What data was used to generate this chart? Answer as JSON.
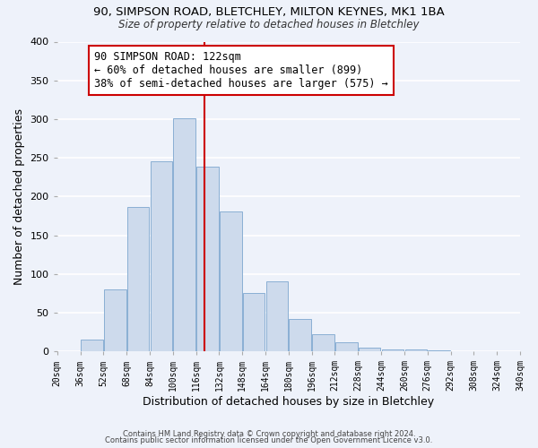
{
  "title1": "90, SIMPSON ROAD, BLETCHLEY, MILTON KEYNES, MK1 1BA",
  "title2": "Size of property relative to detached houses in Bletchley",
  "xlabel": "Distribution of detached houses by size in Bletchley",
  "ylabel": "Number of detached properties",
  "bar_edges": [
    20,
    36,
    52,
    68,
    84,
    100,
    116,
    132,
    148,
    164,
    180,
    196,
    212,
    228,
    244,
    260,
    276,
    292,
    308,
    324,
    340
  ],
  "bar_heights": [
    0,
    15,
    80,
    187,
    245,
    301,
    238,
    181,
    75,
    90,
    42,
    22,
    12,
    5,
    3,
    2,
    1,
    0,
    0,
    0
  ],
  "bar_color": "#cddaec",
  "bar_edgecolor": "#8aafd4",
  "property_line_x": 122,
  "ylim": [
    0,
    400
  ],
  "yticks": [
    0,
    50,
    100,
    150,
    200,
    250,
    300,
    350,
    400
  ],
  "annotation_title": "90 SIMPSON ROAD: 122sqm",
  "annotation_line1": "← 60% of detached houses are smaller (899)",
  "annotation_line2": "38% of semi-detached houses are larger (575) →",
  "vline_color": "#cc0000",
  "footer1": "Contains HM Land Registry data © Crown copyright and database right 2024.",
  "footer2": "Contains public sector information licensed under the Open Government Licence v3.0.",
  "background_color": "#eef2fa",
  "annotation_box_edgecolor": "#cc0000",
  "annotation_box_facecolor": "white",
  "grid_color": "white"
}
